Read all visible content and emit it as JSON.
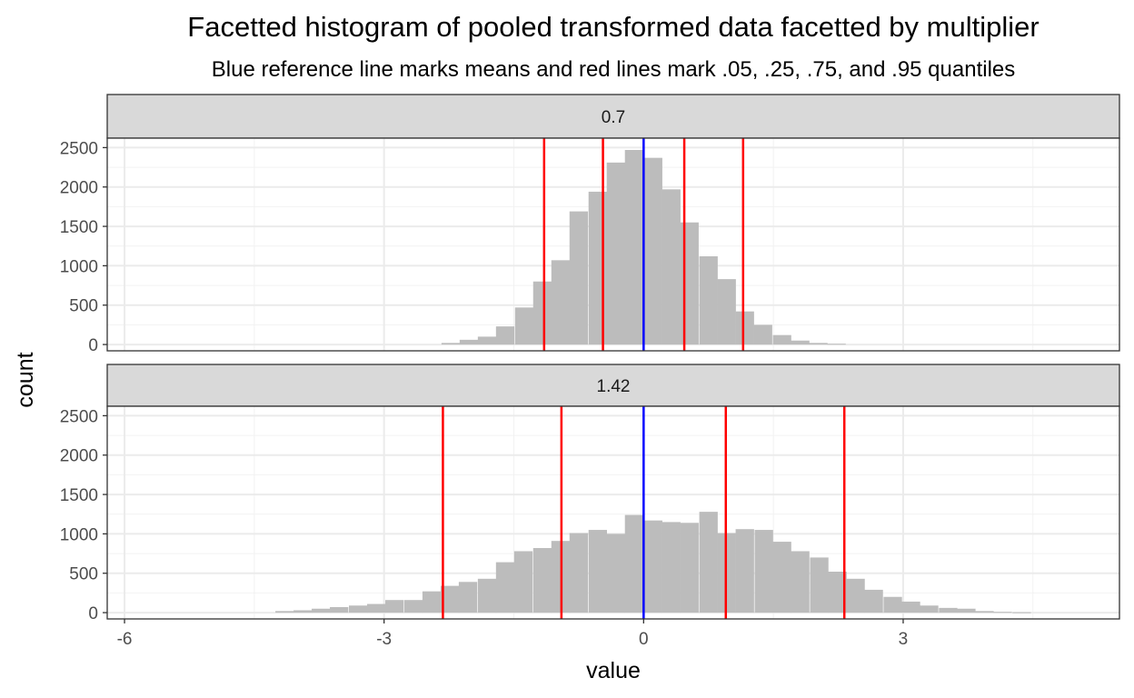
{
  "chart_data": {
    "type": "bar",
    "title": "Facetted histogram of pooled transformed data facetted by multiplier",
    "subtitle": "Blue reference line marks means and red lines mark .05, .25, .75, and .95 quantiles",
    "xlabel": "value",
    "ylabel": "count",
    "xlim": [
      -6.2,
      5.5
    ],
    "ylim": [
      -80,
      2620
    ],
    "x_ticks": [
      {
        "value": -6,
        "label": "-6"
      },
      {
        "value": -3,
        "label": "-3"
      },
      {
        "value": 0,
        "label": "0"
      },
      {
        "value": 3,
        "label": "3"
      }
    ],
    "y_ticks": [
      {
        "value": 0,
        "label": "0"
      },
      {
        "value": 500,
        "label": "500"
      },
      {
        "value": 1000,
        "label": "1000"
      },
      {
        "value": 1500,
        "label": "1500"
      },
      {
        "value": 2000,
        "label": "2000"
      },
      {
        "value": 2500,
        "label": "2500"
      }
    ],
    "grid": true,
    "bin_width": 0.213,
    "colors": {
      "bar": "#bcbcbc",
      "mean_line": "#0000ff",
      "quantile_line": "#ff0000",
      "strip_bg": "#d9d9d9"
    },
    "facets": [
      {
        "label": "0.7",
        "mean": 0,
        "quantiles": [
          -1.15,
          -0.47,
          0.47,
          1.15
        ],
        "bins": [
          {
            "x": -2.23,
            "count": 20
          },
          {
            "x": -2.02,
            "count": 60
          },
          {
            "x": -1.81,
            "count": 100
          },
          {
            "x": -1.6,
            "count": 230
          },
          {
            "x": -1.38,
            "count": 470
          },
          {
            "x": -1.17,
            "count": 800
          },
          {
            "x": -0.96,
            "count": 1070
          },
          {
            "x": -0.75,
            "count": 1690
          },
          {
            "x": -0.53,
            "count": 1940
          },
          {
            "x": -0.32,
            "count": 2310
          },
          {
            "x": -0.11,
            "count": 2470
          },
          {
            "x": 0.11,
            "count": 2370
          },
          {
            "x": 0.32,
            "count": 1970
          },
          {
            "x": 0.53,
            "count": 1550
          },
          {
            "x": 0.75,
            "count": 1120
          },
          {
            "x": 0.96,
            "count": 830
          },
          {
            "x": 1.17,
            "count": 420
          },
          {
            "x": 1.38,
            "count": 250
          },
          {
            "x": 1.6,
            "count": 120
          },
          {
            "x": 1.81,
            "count": 50
          },
          {
            "x": 2.02,
            "count": 20
          },
          {
            "x": 2.23,
            "count": 10
          }
        ]
      },
      {
        "label": "1.42",
        "mean": 0,
        "quantiles": [
          -2.32,
          -0.95,
          0.95,
          2.32
        ],
        "bins": [
          {
            "x": -4.15,
            "count": 20
          },
          {
            "x": -3.94,
            "count": 30
          },
          {
            "x": -3.73,
            "count": 50
          },
          {
            "x": -3.52,
            "count": 70
          },
          {
            "x": -3.3,
            "count": 90
          },
          {
            "x": -3.09,
            "count": 110
          },
          {
            "x": -2.88,
            "count": 160
          },
          {
            "x": -2.66,
            "count": 160
          },
          {
            "x": -2.45,
            "count": 270
          },
          {
            "x": -2.24,
            "count": 340
          },
          {
            "x": -2.03,
            "count": 390
          },
          {
            "x": -1.81,
            "count": 430
          },
          {
            "x": -1.6,
            "count": 640
          },
          {
            "x": -1.39,
            "count": 780
          },
          {
            "x": -1.17,
            "count": 820
          },
          {
            "x": -0.96,
            "count": 910
          },
          {
            "x": -0.75,
            "count": 1010
          },
          {
            "x": -0.53,
            "count": 1050
          },
          {
            "x": -0.32,
            "count": 1000
          },
          {
            "x": -0.11,
            "count": 1240
          },
          {
            "x": 0.11,
            "count": 1170
          },
          {
            "x": 0.32,
            "count": 1150
          },
          {
            "x": 0.53,
            "count": 1140
          },
          {
            "x": 0.75,
            "count": 1280
          },
          {
            "x": 0.96,
            "count": 1010
          },
          {
            "x": 1.17,
            "count": 1060
          },
          {
            "x": 1.39,
            "count": 1050
          },
          {
            "x": 1.6,
            "count": 900
          },
          {
            "x": 1.81,
            "count": 780
          },
          {
            "x": 2.03,
            "count": 700
          },
          {
            "x": 2.24,
            "count": 520
          },
          {
            "x": 2.45,
            "count": 430
          },
          {
            "x": 2.66,
            "count": 290
          },
          {
            "x": 2.88,
            "count": 200
          },
          {
            "x": 3.09,
            "count": 140
          },
          {
            "x": 3.3,
            "count": 90
          },
          {
            "x": 3.52,
            "count": 60
          },
          {
            "x": 3.73,
            "count": 50
          },
          {
            "x": 3.94,
            "count": 20
          },
          {
            "x": 4.15,
            "count": 10
          },
          {
            "x": 4.37,
            "count": 5
          }
        ]
      }
    ]
  }
}
